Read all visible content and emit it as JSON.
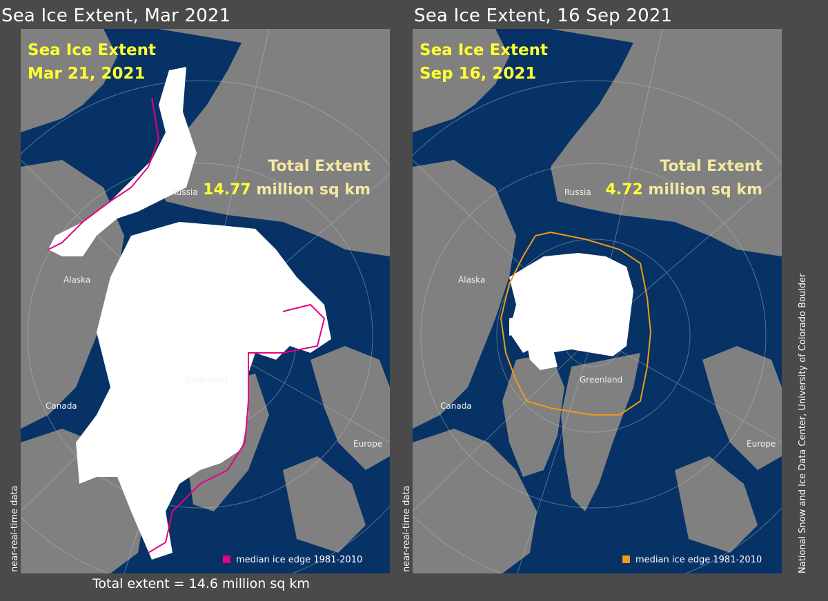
{
  "panels": [
    {
      "title": "Sea Ice Extent, Mar 2021",
      "label_line1": "Sea Ice Extent",
      "label_line2": "Mar 21, 2021",
      "total_label": "Total Extent",
      "extent_value": "14.77",
      "extent_unit": " million sq km",
      "legend": "median ice edge 1981-2010",
      "legend_color": "#e6007e",
      "side_note": "near-real-time data"
    },
    {
      "title": "Sea Ice Extent, 16 Sep 2021",
      "label_line1": "Sea Ice Extent",
      "label_line2": "Sep 16, 2021",
      "total_label": "Total Extent",
      "extent_value": "4.72",
      "extent_unit": " million sq km",
      "legend": "median ice edge 1981-2010",
      "legend_color": "#f09a1a",
      "side_note": "near-real-time data"
    }
  ],
  "places": {
    "russia": "Russia",
    "alaska": "Alaska",
    "greenland": "Greenland",
    "canada": "Canada",
    "europe": "Europe"
  },
  "colors": {
    "ocean": "#063266",
    "land": "#808080",
    "ice": "#ffffff",
    "label_yellow": "#ffff33"
  },
  "footer": {
    "total_extent": "Total extent = 14.6 million sq km",
    "credit": "National Snow and Ice Data Center, University of Colorado Boulder"
  }
}
